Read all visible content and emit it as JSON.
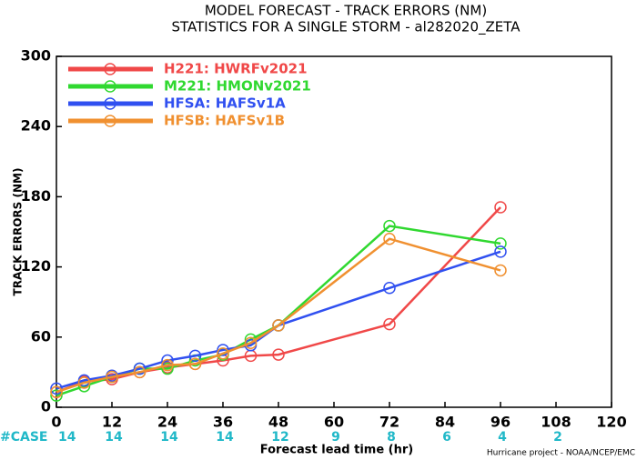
{
  "chart_data": {
    "type": "line",
    "title": "MODEL FORECAST - TRACK ERRORS (NM)",
    "subtitle": "STATISTICS FOR A SINGLE STORM - al282020_ZETA",
    "x_label": "Forecast lead time (hr)",
    "y_label": "TRACK ERRORS (NM)",
    "footer": "Hurricane project - NOAA/NCEP/EMC",
    "x": [
      0,
      6,
      12,
      18,
      24,
      30,
      36,
      42,
      48,
      72,
      96
    ],
    "series": [
      {
        "name": "H221: HWRFv2021",
        "color": "#f04848",
        "values": [
          13,
          22,
          24,
          30,
          34,
          37,
          40,
          44,
          45,
          71,
          171
        ]
      },
      {
        "name": "M221: HMONv2021",
        "color": "#30d830",
        "values": [
          10,
          18,
          26,
          33,
          33,
          40,
          45,
          58,
          70,
          155,
          140
        ]
      },
      {
        "name": "HFSA: HAFSv1A",
        "color": "#3050f0",
        "values": [
          16,
          23,
          27,
          33,
          40,
          44,
          49,
          53,
          70,
          102,
          133
        ]
      },
      {
        "name": "HFSB: HAFSv1B",
        "color": "#f09030",
        "values": [
          13,
          21,
          26,
          30,
          36,
          37,
          46,
          55,
          70,
          144,
          117
        ]
      }
    ],
    "cases": {
      "label": "#CASE",
      "color": "#20b8c8",
      "x": [
        0,
        12,
        24,
        36,
        48,
        60,
        72,
        84,
        96,
        108
      ],
      "values": [
        14,
        14,
        14,
        14,
        12,
        9,
        8,
        6,
        4,
        2
      ]
    },
    "xlim": [
      0,
      120
    ],
    "xticks": [
      0,
      12,
      24,
      36,
      48,
      60,
      72,
      84,
      96,
      108,
      120
    ],
    "ylim": [
      0,
      300
    ],
    "yticks": [
      0,
      60,
      120,
      180,
      240,
      300
    ]
  }
}
